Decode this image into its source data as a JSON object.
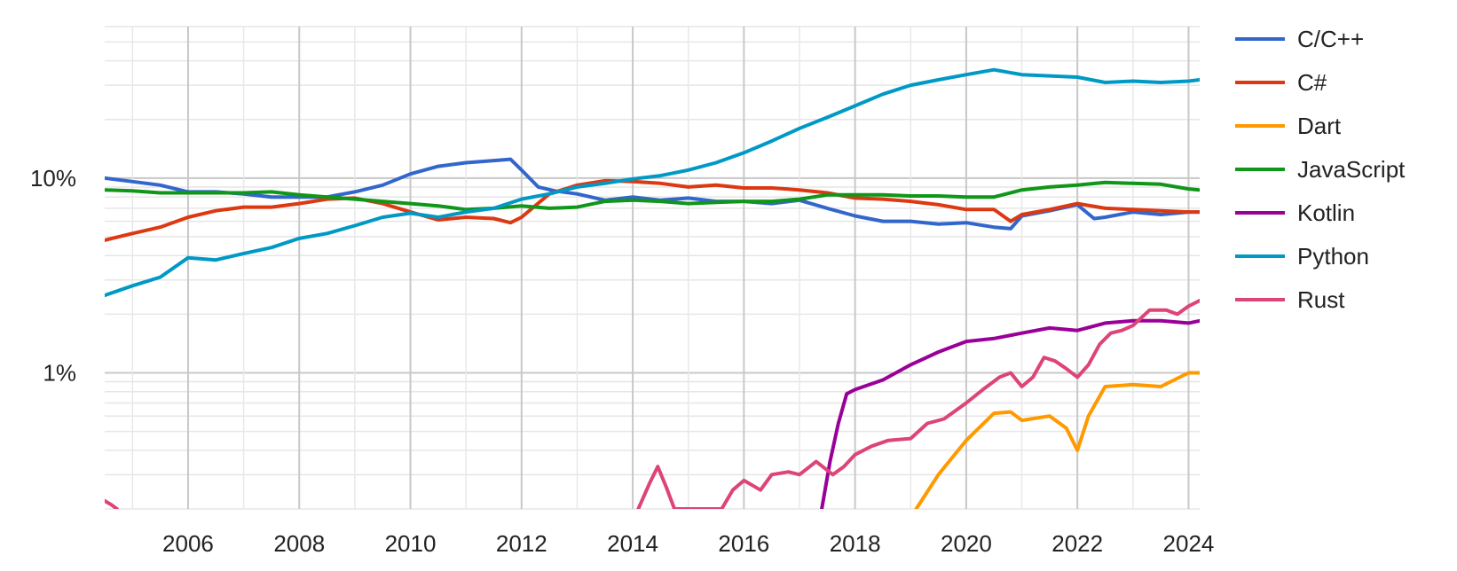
{
  "chart_data": {
    "type": "line",
    "title": "",
    "xlabel": "",
    "ylabel": "",
    "y_scale": "log",
    "ylim": [
      0.2,
      60
    ],
    "xlim": [
      2004.5,
      2024.2
    ],
    "grid": true,
    "legend_position": "right",
    "x_ticks": [
      "2006",
      "2008",
      "2010",
      "2012",
      "2014",
      "2016",
      "2018",
      "2020",
      "2022",
      "2024"
    ],
    "y_ticks": [
      {
        "value": 10,
        "label": "10%"
      },
      {
        "value": 1,
        "label": "1%"
      }
    ],
    "series": [
      {
        "name": "C/C++",
        "color": "#3366cc",
        "x": [
          2004.5,
          2005,
          2005.5,
          2006,
          2006.5,
          2007,
          2007.5,
          2008,
          2008.5,
          2009,
          2009.5,
          2010,
          2010.5,
          2011,
          2011.5,
          2011.8,
          2012,
          2012.3,
          2012.6,
          2013,
          2013.5,
          2014,
          2014.5,
          2015,
          2015.5,
          2016,
          2016.5,
          2017,
          2017.5,
          2018,
          2018.5,
          2019,
          2019.5,
          2020,
          2020.5,
          2020.8,
          2021,
          2021.5,
          2022,
          2022.3,
          2022.5,
          2023,
          2023.5,
          2024,
          2024.2
        ],
        "y": [
          10,
          9.6,
          9.2,
          8.5,
          8.5,
          8.3,
          8.0,
          8.0,
          8.0,
          8.5,
          9.2,
          10.5,
          11.5,
          12.0,
          12.3,
          12.5,
          11.0,
          9.0,
          8.6,
          8.3,
          7.7,
          8.0,
          7.7,
          7.9,
          7.6,
          7.6,
          7.4,
          7.7,
          7.0,
          6.4,
          6.0,
          6.0,
          5.8,
          5.9,
          5.6,
          5.5,
          6.4,
          6.8,
          7.3,
          6.2,
          6.3,
          6.7,
          6.5,
          6.7,
          6.7
        ]
      },
      {
        "name": "C#",
        "color": "#dc3912",
        "x": [
          2004.5,
          2005,
          2005.5,
          2006,
          2006.5,
          2007,
          2007.5,
          2008,
          2008.5,
          2009,
          2009.5,
          2010,
          2010.5,
          2011,
          2011.5,
          2011.8,
          2012,
          2012.5,
          2013,
          2013.5,
          2014,
          2014.5,
          2015,
          2015.5,
          2016,
          2016.5,
          2017,
          2017.5,
          2018,
          2018.5,
          2019,
          2019.5,
          2020,
          2020.5,
          2020.8,
          2021,
          2021.5,
          2022,
          2022.5,
          2023,
          2023.5,
          2024,
          2024.2
        ],
        "y": [
          4.8,
          5.2,
          5.6,
          6.3,
          6.8,
          7.1,
          7.1,
          7.4,
          7.8,
          7.9,
          7.4,
          6.7,
          6.1,
          6.3,
          6.2,
          5.9,
          6.3,
          8.3,
          9.2,
          9.7,
          9.6,
          9.4,
          9.0,
          9.2,
          8.9,
          8.9,
          8.7,
          8.4,
          7.9,
          7.8,
          7.6,
          7.3,
          6.9,
          6.9,
          6.0,
          6.5,
          6.9,
          7.4,
          7.0,
          6.9,
          6.8,
          6.7,
          6.7
        ]
      },
      {
        "name": "Dart",
        "color": "#ff9900",
        "x": [
          2019.1,
          2019.5,
          2020,
          2020.5,
          2020.8,
          2021,
          2021.5,
          2021.8,
          2022,
          2022.2,
          2022.5,
          2023,
          2023.5,
          2024,
          2024.2
        ],
        "y": [
          0.2,
          0.3,
          0.45,
          0.62,
          0.63,
          0.57,
          0.6,
          0.52,
          0.4,
          0.6,
          0.85,
          0.87,
          0.85,
          1.0,
          1.0
        ]
      },
      {
        "name": "JavaScript",
        "color": "#109618",
        "x": [
          2004.5,
          2005,
          2005.5,
          2006,
          2006.5,
          2007,
          2007.5,
          2008,
          2008.5,
          2009,
          2009.5,
          2010,
          2010.5,
          2011,
          2011.5,
          2012,
          2012.5,
          2013,
          2013.5,
          2014,
          2014.5,
          2015,
          2015.5,
          2016,
          2016.5,
          2017,
          2017.5,
          2018,
          2018.5,
          2019,
          2019.5,
          2020,
          2020.5,
          2021,
          2021.5,
          2022,
          2022.5,
          2023,
          2023.5,
          2024,
          2024.2
        ],
        "y": [
          8.7,
          8.6,
          8.4,
          8.4,
          8.4,
          8.4,
          8.5,
          8.2,
          8.0,
          7.8,
          7.6,
          7.4,
          7.2,
          6.9,
          7.0,
          7.2,
          7.0,
          7.1,
          7.6,
          7.7,
          7.6,
          7.4,
          7.5,
          7.6,
          7.6,
          7.8,
          8.2,
          8.2,
          8.2,
          8.1,
          8.1,
          8.0,
          8.0,
          8.7,
          9.0,
          9.2,
          9.5,
          9.4,
          9.3,
          8.8,
          8.7
        ]
      },
      {
        "name": "Kotlin",
        "color": "#990099",
        "x": [
          2017.4,
          2017.55,
          2017.7,
          2017.85,
          2018,
          2018.5,
          2019,
          2019.5,
          2020,
          2020.5,
          2021,
          2021.5,
          2022,
          2022.5,
          2023,
          2023.5,
          2024,
          2024.2
        ],
        "y": [
          0.2,
          0.35,
          0.55,
          0.78,
          0.82,
          0.92,
          1.1,
          1.28,
          1.45,
          1.5,
          1.6,
          1.7,
          1.65,
          1.8,
          1.85,
          1.85,
          1.8,
          1.85
        ]
      },
      {
        "name": "Python",
        "color": "#0099c6",
        "x": [
          2004.5,
          2005,
          2005.5,
          2006,
          2006.5,
          2007,
          2007.5,
          2008,
          2008.5,
          2009,
          2009.5,
          2010,
          2010.5,
          2011,
          2011.5,
          2012,
          2012.5,
          2013,
          2013.5,
          2014,
          2014.5,
          2015,
          2015.5,
          2016,
          2016.5,
          2017,
          2017.5,
          2018,
          2018.5,
          2019,
          2019.5,
          2020,
          2020.5,
          2021,
          2021.5,
          2022,
          2022.5,
          2023,
          2023.5,
          2024,
          2024.2
        ],
        "y": [
          2.5,
          2.8,
          3.1,
          3.9,
          3.8,
          4.1,
          4.4,
          4.9,
          5.2,
          5.7,
          6.3,
          6.6,
          6.3,
          6.7,
          7.0,
          7.8,
          8.3,
          9.0,
          9.4,
          9.9,
          10.3,
          11.0,
          12.0,
          13.5,
          15.5,
          18.0,
          20.5,
          23.5,
          27.0,
          30.0,
          32.0,
          34.0,
          36.0,
          34.0,
          33.5,
          33.0,
          31.0,
          31.5,
          31.0,
          31.5,
          32.0
        ]
      },
      {
        "name": "Rust",
        "color": "#dd4477",
        "x": [
          2004.5,
          2004.62,
          2004.72,
          2014.1,
          2014.3,
          2014.45,
          2014.6,
          2014.75,
          2015.6,
          2015.8,
          2016,
          2016.3,
          2016.5,
          2016.8,
          2017,
          2017.3,
          2017.6,
          2017.8,
          2018,
          2018.3,
          2018.6,
          2019,
          2019.3,
          2019.6,
          2020,
          2020.3,
          2020.6,
          2020.8,
          2021,
          2021.2,
          2021.4,
          2021.6,
          2021.8,
          2022,
          2022.2,
          2022.4,
          2022.6,
          2022.8,
          2023,
          2023.3,
          2023.6,
          2023.8,
          2024,
          2024.2
        ],
        "y": [
          0.22,
          0.21,
          0.2,
          0.2,
          0.27,
          0.33,
          0.26,
          0.2,
          0.2,
          0.25,
          0.28,
          0.25,
          0.3,
          0.31,
          0.3,
          0.35,
          0.3,
          0.33,
          0.38,
          0.42,
          0.45,
          0.46,
          0.55,
          0.58,
          0.7,
          0.82,
          0.95,
          1.0,
          0.85,
          0.95,
          1.2,
          1.15,
          1.05,
          0.95,
          1.1,
          1.4,
          1.6,
          1.65,
          1.75,
          2.1,
          2.1,
          2.0,
          2.2,
          2.35
        ]
      }
    ]
  }
}
